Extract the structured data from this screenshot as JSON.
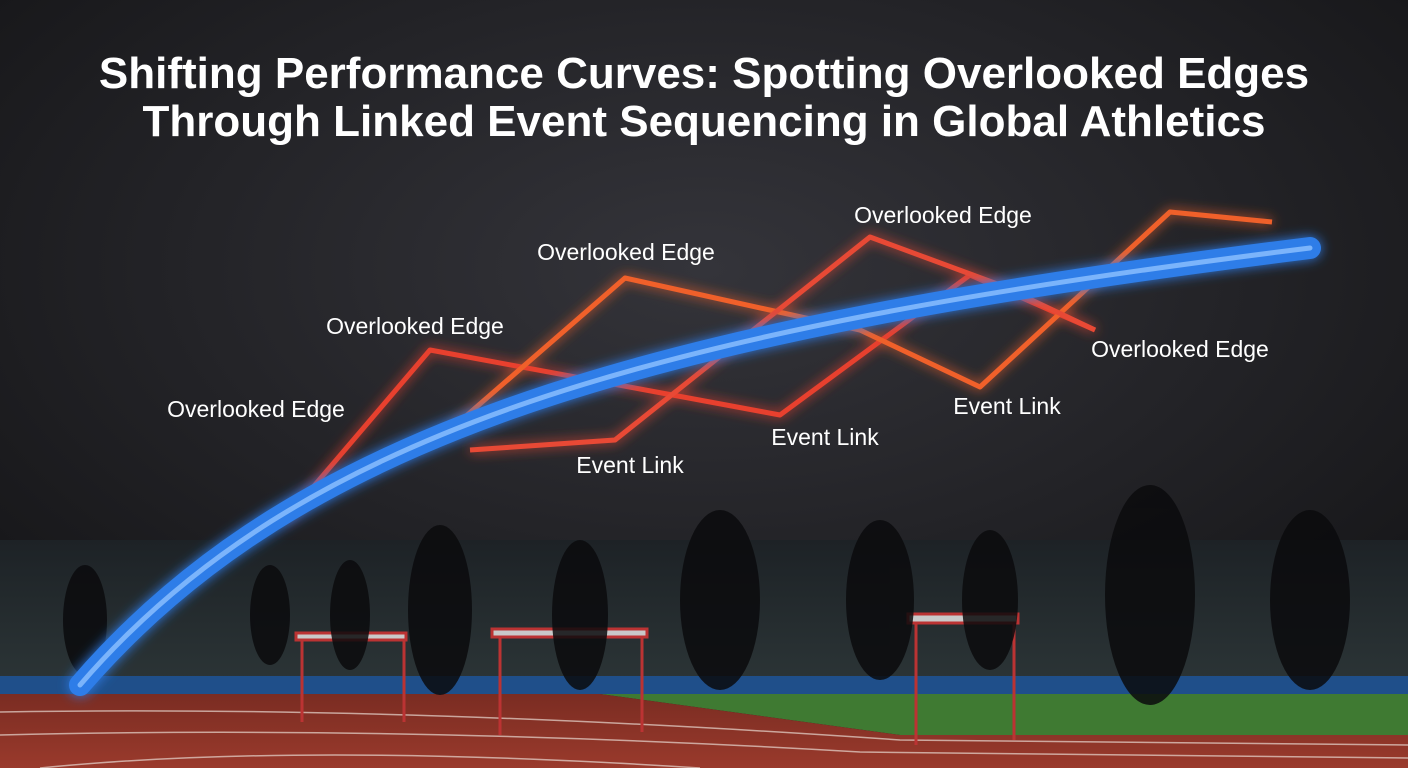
{
  "title_lines": [
    "Shifting Performance Curves: Spotting Overlooked Edges",
    "Through Linked Event Sequencing in Global Athletics"
  ],
  "labels": [
    "Overlooked Edge",
    "Overlooked Edge",
    "Overlooked Edge",
    "Overlooked Edge",
    "Overlooked Edge",
    "Event Link",
    "Event Link",
    "Event Link"
  ]
}
